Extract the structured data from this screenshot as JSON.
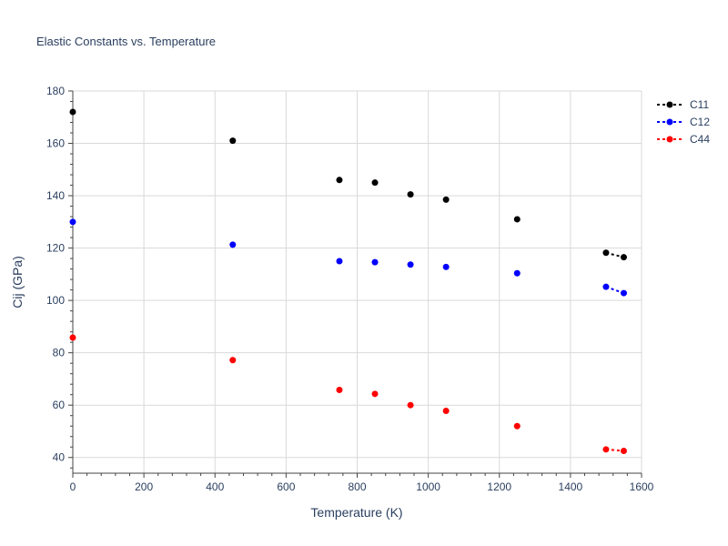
{
  "chart_data": {
    "type": "scatter",
    "title": "Elastic Constants vs. Temperature",
    "xlabel": "Temperature (K)",
    "ylabel": "Cij (GPa)",
    "xlim": [
      0,
      1600
    ],
    "ylim": [
      34,
      180
    ],
    "xticks": [
      0,
      200,
      400,
      600,
      800,
      1000,
      1200,
      1400,
      1600
    ],
    "yticks": [
      40,
      60,
      80,
      100,
      120,
      140,
      160,
      180
    ],
    "grid": true,
    "legend_position": "top-right",
    "series": [
      {
        "name": "C11",
        "color": "#000000",
        "x": [
          0,
          450,
          750,
          850,
          950,
          1050,
          1250,
          1500,
          1550
        ],
        "y": [
          172,
          161,
          146,
          145,
          140.5,
          138.5,
          131,
          118.2,
          116.5
        ],
        "dashed_segment_from_index": 7
      },
      {
        "name": "C12",
        "color": "#0000ff",
        "x": [
          0,
          450,
          750,
          850,
          950,
          1050,
          1250,
          1500,
          1550
        ],
        "y": [
          130,
          121.3,
          115,
          114.6,
          113.7,
          112.8,
          110.4,
          105.2,
          102.8
        ],
        "dashed_segment_from_index": 7
      },
      {
        "name": "C44",
        "color": "#ff0000",
        "x": [
          0,
          450,
          750,
          850,
          950,
          1050,
          1250,
          1500,
          1550
        ],
        "y": [
          85.8,
          77.2,
          65.8,
          64.3,
          60,
          57.8,
          52,
          43.1,
          42.5
        ],
        "dashed_segment_from_index": 7
      }
    ]
  }
}
